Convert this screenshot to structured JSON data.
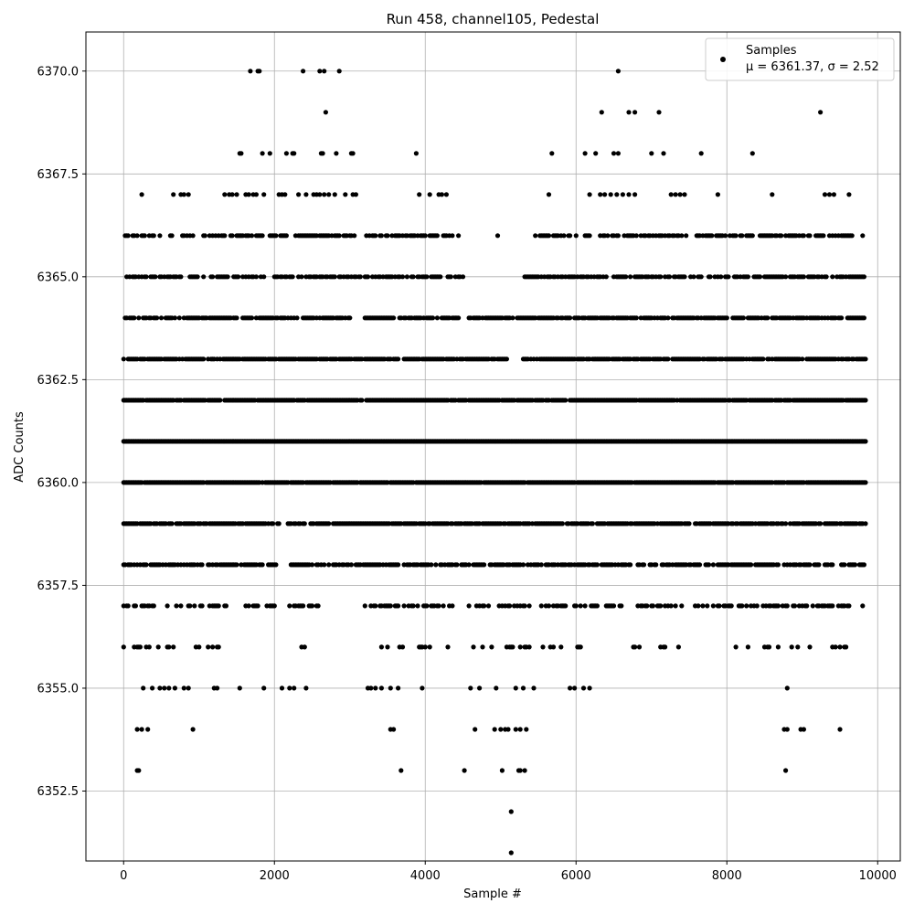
{
  "chart_data": {
    "type": "scatter",
    "title": "Run 458, channel105, Pedestal",
    "xlabel": "Sample #",
    "ylabel": "ADC Counts",
    "xlim": [
      -500,
      10300
    ],
    "ylim": [
      6350.8,
      6370.95
    ],
    "x_ticks": [
      0,
      2000,
      4000,
      6000,
      8000,
      10000
    ],
    "y_ticks": [
      6352.5,
      6355.0,
      6357.5,
      6360.0,
      6362.5,
      6365.0,
      6367.5,
      6370.0
    ],
    "x_tick_labels": [
      "0",
      "2000",
      "4000",
      "6000",
      "8000",
      "10000"
    ],
    "y_tick_labels": [
      "6352.5",
      "6355.0",
      "6357.5",
      "6360.0",
      "6362.5",
      "6365.0",
      "6367.5",
      "6370.0"
    ],
    "grid": true,
    "legend_position": "top-right",
    "series": [
      {
        "name": "Samples",
        "color": "#000000",
        "marker": "circle",
        "x_range": [
          0,
          9850
        ],
        "mean": 6361.37,
        "sigma": 2.52,
        "x": [
          1680,
          1780,
          1800,
          2380,
          2600,
          2660,
          2860,
          6560,
          2680,
          6340,
          6700,
          6780,
          7100,
          9240,
          1540,
          1560,
          1840,
          1940,
          2160,
          2240,
          2260,
          2620,
          2640,
          2820,
          3020,
          3040,
          3880,
          5680,
          6120,
          6260,
          6500,
          6560,
          7000,
          7160,
          7660,
          8340,
          240,
          660,
          760,
          800,
          860,
          1340,
          1400,
          1440,
          1500,
          1620,
          1660,
          1720,
          1760,
          1860,
          2060,
          2100,
          2140,
          2320,
          2420,
          2520,
          2560,
          2600,
          2660,
          2720,
          2800,
          2940,
          3040,
          3080,
          3920,
          4060,
          4180,
          4220,
          4280,
          5640,
          6180,
          6320,
          6380,
          6460,
          6540,
          6620,
          6700,
          6780,
          7260,
          7320,
          7380,
          7440,
          7880,
          8600,
          9300,
          9360,
          9420,
          9620,
          5140,
          5140,
          180,
          200,
          3680,
          4520,
          5020,
          5240,
          5260,
          5320,
          8780,
          180,
          240,
          320,
          920,
          3540,
          3580,
          4660,
          4920,
          5000,
          5060,
          5100,
          5200,
          5260,
          5340,
          8760,
          8800,
          8980,
          9020,
          9500
        ],
        "y": [
          6370,
          6370,
          6370,
          6370,
          6370,
          6370,
          6370,
          6370,
          6369,
          6369,
          6369,
          6369,
          6369,
          6369,
          6368,
          6368,
          6368,
          6368,
          6368,
          6368,
          6368,
          6368,
          6368,
          6368,
          6368,
          6368,
          6368,
          6368,
          6368,
          6368,
          6368,
          6368,
          6368,
          6368,
          6368,
          6368,
          6367,
          6367,
          6367,
          6367,
          6367,
          6367,
          6367,
          6367,
          6367,
          6367,
          6367,
          6367,
          6367,
          6367,
          6367,
          6367,
          6367,
          6367,
          6367,
          6367,
          6367,
          6367,
          6367,
          6367,
          6367,
          6367,
          6367,
          6367,
          6367,
          6367,
          6367,
          6367,
          6367,
          6367,
          6367,
          6367,
          6367,
          6367,
          6367,
          6367,
          6367,
          6367,
          6367,
          6367,
          6367,
          6367,
          6367,
          6367,
          6367,
          6367,
          6367,
          6367,
          6352,
          6351,
          6353,
          6353,
          6353,
          6353,
          6353,
          6353,
          6353,
          6353,
          6353,
          6354,
          6354,
          6354,
          6354,
          6354,
          6354,
          6354,
          6354,
          6354,
          6354,
          6354,
          6354,
          6354,
          6354,
          6354,
          6354,
          6354,
          6354,
          6354
        ],
        "dense_levels": [
          {
            "y": 6366,
            "density": 0.55,
            "gaps": [
              [
                4480,
                4920
              ],
              [
                5000,
                5400
              ],
              [
                6200,
                6300
              ]
            ]
          },
          {
            "y": 6365,
            "density": 0.6,
            "gaps": [
              [
                4520,
                4900
              ],
              [
                4940,
                5300
              ]
            ]
          },
          {
            "y": 6364,
            "density": 0.75,
            "gaps": [
              [
                3020,
                3180
              ],
              [
                4460,
                4560
              ]
            ]
          },
          {
            "y": 6363,
            "density": 0.85,
            "gaps": [
              [
                5100,
                5280
              ]
            ]
          },
          {
            "y": 6362,
            "density": 0.95,
            "gaps": []
          },
          {
            "y": 6361,
            "density": 1.0,
            "gaps": []
          },
          {
            "y": 6360,
            "density": 0.95,
            "gaps": []
          },
          {
            "y": 6359,
            "density": 0.85,
            "gaps": [
              [
                2080,
                2160
              ]
            ]
          },
          {
            "y": 6358,
            "density": 0.7,
            "gaps": [
              [
                2040,
                2200
              ]
            ]
          },
          {
            "y": 6357,
            "density": 0.45,
            "gaps": [
              [
                1380,
                1600
              ],
              [
                2600,
                3180
              ],
              [
                6700,
                6780
              ],
              [
                7460,
                7560
              ]
            ]
          },
          {
            "y": 6356,
            "density": 0.18,
            "gaps": [
              [
                1300,
                1940
              ],
              [
                2060,
                2340
              ],
              [
                2560,
                3240
              ],
              [
                6100,
                6700
              ],
              [
                7400,
                8020
              ],
              [
                9700,
                9850
              ]
            ]
          },
          {
            "y": 6355,
            "density": 0.1,
            "gaps": [
              [
                1300,
                1500
              ],
              [
                1600,
                1780
              ],
              [
                2560,
                3200
              ],
              [
                5500,
                5880
              ],
              [
                6200,
                7100
              ],
              [
                7240,
                8400
              ],
              [
                9600,
                9850
              ]
            ]
          }
        ]
      }
    ]
  },
  "legend": {
    "series_label": "Samples",
    "stats_label": "μ = 6361.37, σ = 2.52"
  }
}
